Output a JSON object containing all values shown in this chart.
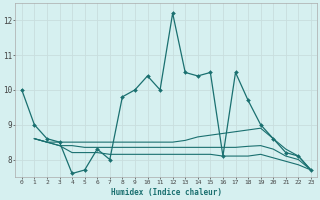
{
  "xlabel": "Humidex (Indice chaleur)",
  "background_color": "#d6f0f0",
  "grid_color": "#c8dede",
  "line_color": "#1a7070",
  "xlim": [
    -0.5,
    23.5
  ],
  "ylim": [
    7.5,
    12.5
  ],
  "yticks": [
    8,
    9,
    10,
    11,
    12
  ],
  "xticks": [
    0,
    1,
    2,
    3,
    4,
    5,
    6,
    7,
    8,
    9,
    10,
    11,
    12,
    13,
    14,
    15,
    16,
    17,
    18,
    19,
    20,
    21,
    22,
    23
  ],
  "lines": [
    {
      "x": [
        0,
        1,
        2,
        3,
        4,
        5,
        6,
        7,
        8,
        9,
        10,
        11,
        12,
        13,
        14,
        15,
        16,
        17,
        18,
        19,
        20,
        21,
        22,
        23
      ],
      "y": [
        10.0,
        9.0,
        8.6,
        8.5,
        7.6,
        7.7,
        8.3,
        8.0,
        9.8,
        10.0,
        10.4,
        10.0,
        12.2,
        10.5,
        10.4,
        10.5,
        8.1,
        10.5,
        9.7,
        9.0,
        8.6,
        8.2,
        8.1,
        7.7
      ],
      "marker": true
    },
    {
      "x": [
        1,
        2,
        3,
        4,
        5,
        6,
        7,
        8,
        9,
        10,
        11,
        12,
        13,
        14,
        15,
        16,
        17,
        18,
        19,
        20,
        21,
        22,
        23
      ],
      "y": [
        8.6,
        8.5,
        8.5,
        8.5,
        8.5,
        8.5,
        8.5,
        8.5,
        8.5,
        8.5,
        8.5,
        8.5,
        8.55,
        8.65,
        8.7,
        8.75,
        8.8,
        8.85,
        8.9,
        8.6,
        8.3,
        8.1,
        7.7
      ],
      "marker": false
    },
    {
      "x": [
        1,
        2,
        3,
        4,
        5,
        6,
        7,
        8,
        9,
        10,
        11,
        12,
        13,
        14,
        15,
        16,
        17,
        18,
        19,
        20,
        21,
        22,
        23
      ],
      "y": [
        8.6,
        8.5,
        8.4,
        8.4,
        8.35,
        8.35,
        8.35,
        8.35,
        8.35,
        8.35,
        8.35,
        8.35,
        8.35,
        8.35,
        8.35,
        8.35,
        8.35,
        8.38,
        8.4,
        8.3,
        8.1,
        8.0,
        7.7
      ],
      "marker": false
    },
    {
      "x": [
        1,
        2,
        3,
        4,
        5,
        6,
        7,
        8,
        9,
        10,
        11,
        12,
        13,
        14,
        15,
        16,
        17,
        18,
        19,
        20,
        21,
        22,
        23
      ],
      "y": [
        8.6,
        8.5,
        8.4,
        8.2,
        8.2,
        8.2,
        8.15,
        8.15,
        8.15,
        8.15,
        8.15,
        8.15,
        8.15,
        8.15,
        8.15,
        8.1,
        8.1,
        8.1,
        8.15,
        8.05,
        7.95,
        7.85,
        7.7
      ],
      "marker": false
    }
  ]
}
